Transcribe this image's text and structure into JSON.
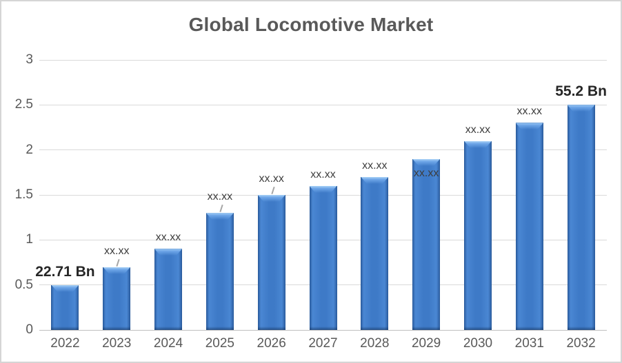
{
  "chart_data": {
    "type": "bar",
    "title": "Global Locomotive Market",
    "categories": [
      "2022",
      "2023",
      "2024",
      "2025",
      "2026",
      "2027",
      "2028",
      "2029",
      "2030",
      "2031",
      "2032"
    ],
    "values": [
      0.5,
      0.7,
      0.9,
      1.3,
      1.5,
      1.6,
      1.7,
      1.9,
      2.1,
      2.3,
      2.5
    ],
    "point_labels": [
      {
        "text": "22.71 Bn",
        "emphasis": true,
        "placement": "above",
        "leader": false
      },
      {
        "text": "xx.xx",
        "emphasis": false,
        "placement": "above",
        "leader": true
      },
      {
        "text": "xx.xx",
        "emphasis": false,
        "placement": "above",
        "leader": false
      },
      {
        "text": "xx.xx",
        "emphasis": false,
        "placement": "above",
        "leader": true
      },
      {
        "text": "xx.xx",
        "emphasis": false,
        "placement": "above",
        "leader": true
      },
      {
        "text": "xx.xx",
        "emphasis": false,
        "placement": "above",
        "leader": false
      },
      {
        "text": "xx.xx",
        "emphasis": false,
        "placement": "above",
        "leader": false
      },
      {
        "text": "xx.xx",
        "emphasis": false,
        "placement": "inside",
        "leader": false
      },
      {
        "text": "xx.xx",
        "emphasis": false,
        "placement": "above",
        "leader": false
      },
      {
        "text": "xx.xx",
        "emphasis": false,
        "placement": "above",
        "leader": false
      },
      {
        "text": "55.2 Bn",
        "emphasis": true,
        "placement": "above",
        "leader": false
      }
    ],
    "xlabel": "",
    "ylabel": "",
    "ylim": [
      0,
      3
    ],
    "yticks": [
      0,
      0.5,
      1,
      1.5,
      2,
      2.5,
      3
    ],
    "ytick_labels": [
      "0",
      "0.5",
      "1",
      "1.5",
      "2",
      "2.5",
      "3"
    ],
    "grid": true,
    "legend": false,
    "colors": {
      "bar_fill": "#3e7ac7",
      "bar_fill_light": "#a9d2f7",
      "bar_edge": "#2a5c9e",
      "gridline": "#d9d9d9",
      "axis_line": "#bfbfbf",
      "axis_text": "#595959",
      "title_text": "#595959",
      "data_label": "#3d3d3d",
      "emphasis_label": "#262626",
      "leader_line": "#a6a6a6",
      "frame_border": "#d5d5d5",
      "background": "#ffffff"
    }
  }
}
